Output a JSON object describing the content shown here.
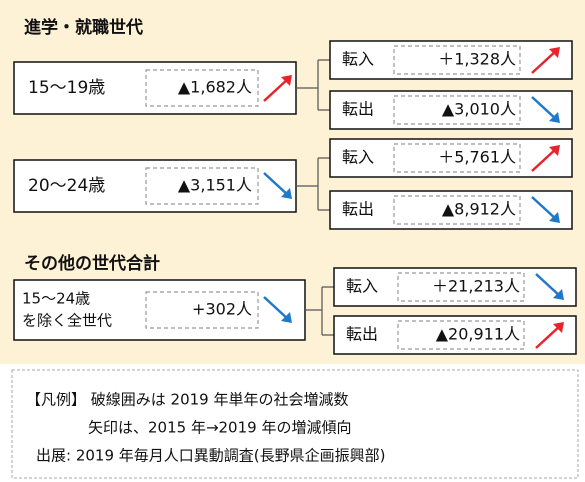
{
  "titles": [
    "進学・就職世代",
    "その他の世代合計"
  ],
  "groups": [
    {
      "label_lines": [
        "15〜19歳"
      ],
      "value": "▲1,682人",
      "arrow": "up",
      "in": {
        "label": "転入",
        "value": "＋1,328人",
        "arrow": "up"
      },
      "out": {
        "label": "転出",
        "value": "▲3,010人",
        "arrow": "down"
      }
    },
    {
      "label_lines": [
        "20〜24歳"
      ],
      "value": "▲3,151人",
      "arrow": "down",
      "in": {
        "label": "転入",
        "value": "＋5,761人",
        "arrow": "up"
      },
      "out": {
        "label": "転出",
        "value": "▲8,912人",
        "arrow": "down"
      }
    },
    {
      "label_lines": [
        "15〜24歳",
        "を除く全世代"
      ],
      "value": "+302人",
      "arrow": "down",
      "in": {
        "label": "転入",
        "value": "＋21,213人",
        "arrow": "down"
      },
      "out": {
        "label": "転出",
        "value": "▲20,911人",
        "arrow": "up"
      }
    }
  ],
  "arrow_colors": {
    "up": "#e8232b",
    "down": "#1f78c8"
  },
  "legend": [
    "【凡例】 破線囲みは 2019 年単年の社会増減数",
    "矢印は、2015 年→2019 年の増減傾向",
    "出展: 2019 年毎月人口異動調査(長野県企画振興部)"
  ]
}
